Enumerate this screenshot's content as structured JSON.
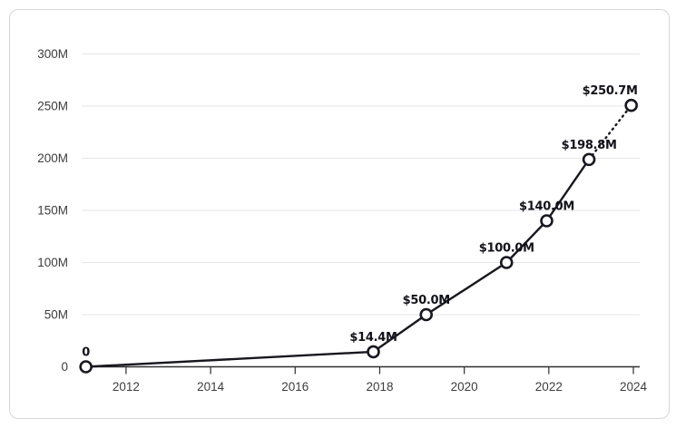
{
  "chart_data": {
    "type": "line",
    "title": "",
    "points": [
      {
        "x": 2011.05,
        "y": 0,
        "label": "0"
      },
      {
        "x": 2017.85,
        "y": 14.4,
        "label": "$14.4M"
      },
      {
        "x": 2019.1,
        "y": 50.0,
        "label": "$50.0M"
      },
      {
        "x": 2021.0,
        "y": 100.0,
        "label": "$100.0M"
      },
      {
        "x": 2021.95,
        "y": 140.0,
        "label": "$140.0M"
      },
      {
        "x": 2022.95,
        "y": 198.8,
        "label": "$198.8M"
      },
      {
        "x": 2023.95,
        "y": 250.7,
        "label": "$250.7M"
      }
    ],
    "final_segment_dotted": true,
    "x_ticks": [
      {
        "value": 2012,
        "label": "2012"
      },
      {
        "value": 2014,
        "label": "2014"
      },
      {
        "value": 2016,
        "label": "2016"
      },
      {
        "value": 2018,
        "label": "2018"
      },
      {
        "value": 2020,
        "label": "2020"
      },
      {
        "value": 2022,
        "label": "2022"
      },
      {
        "value": 2024,
        "label": "2024"
      }
    ],
    "y_ticks": [
      {
        "value": 0,
        "label": "0"
      },
      {
        "value": 50,
        "label": "50M"
      },
      {
        "value": 100,
        "label": "100M"
      },
      {
        "value": 150,
        "label": "150M"
      },
      {
        "value": 200,
        "label": "200M"
      },
      {
        "value": 250,
        "label": "250M"
      },
      {
        "value": 300,
        "label": "300M"
      }
    ],
    "xlim": [
      2010.95,
      2024.15
    ],
    "ylim": [
      0,
      300
    ],
    "grid": true,
    "legend": false,
    "colors": {
      "line": "#17171f",
      "marker_fill": "#ffffff",
      "grid": "#e6e6e6",
      "axis": "#2f2f2f",
      "tick_text": "#3d3d3d",
      "label_text": "#12121a",
      "card_border": "#d6d6d6",
      "background": "#ffffff"
    }
  }
}
